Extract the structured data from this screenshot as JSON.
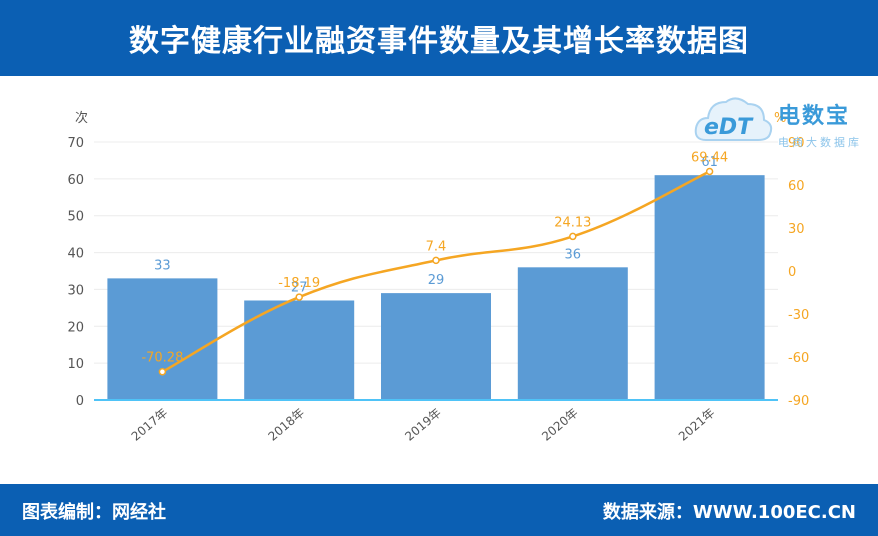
{
  "header": {
    "title": "数字健康行业融资事件数量及其增长率数据图"
  },
  "footer": {
    "left": "图表编制：网经社",
    "right": "数据来源：WWW.100EC.CN"
  },
  "watermark": {
    "brand": "电数宝",
    "sub": "电商大数据库"
  },
  "colors": {
    "header_bg": "#0b5fb3",
    "bar": "#5b9bd5",
    "line": "#f5a623",
    "axis": "#4fc3f7"
  },
  "chart_data": {
    "type": "bar",
    "title": "",
    "categories": [
      "2017年",
      "2018年",
      "2019年",
      "2020年",
      "2021年"
    ],
    "series": [
      {
        "type": "bar",
        "axis": "left",
        "values": [
          33,
          27,
          29,
          36,
          61
        ]
      },
      {
        "type": "line",
        "axis": "right",
        "values": [
          -70.28,
          -18.19,
          7.4,
          24.13,
          69.44
        ]
      }
    ],
    "ylabel": "次",
    "ylim": [
      0,
      70
    ],
    "yticks": [
      0,
      10,
      20,
      30,
      40,
      50,
      60,
      70
    ],
    "y2label": "%",
    "y2lim": [
      -90,
      90
    ],
    "y2ticks": [
      -90,
      -60,
      -30,
      0,
      30,
      60,
      90
    ],
    "grid": true,
    "legend": "none"
  }
}
